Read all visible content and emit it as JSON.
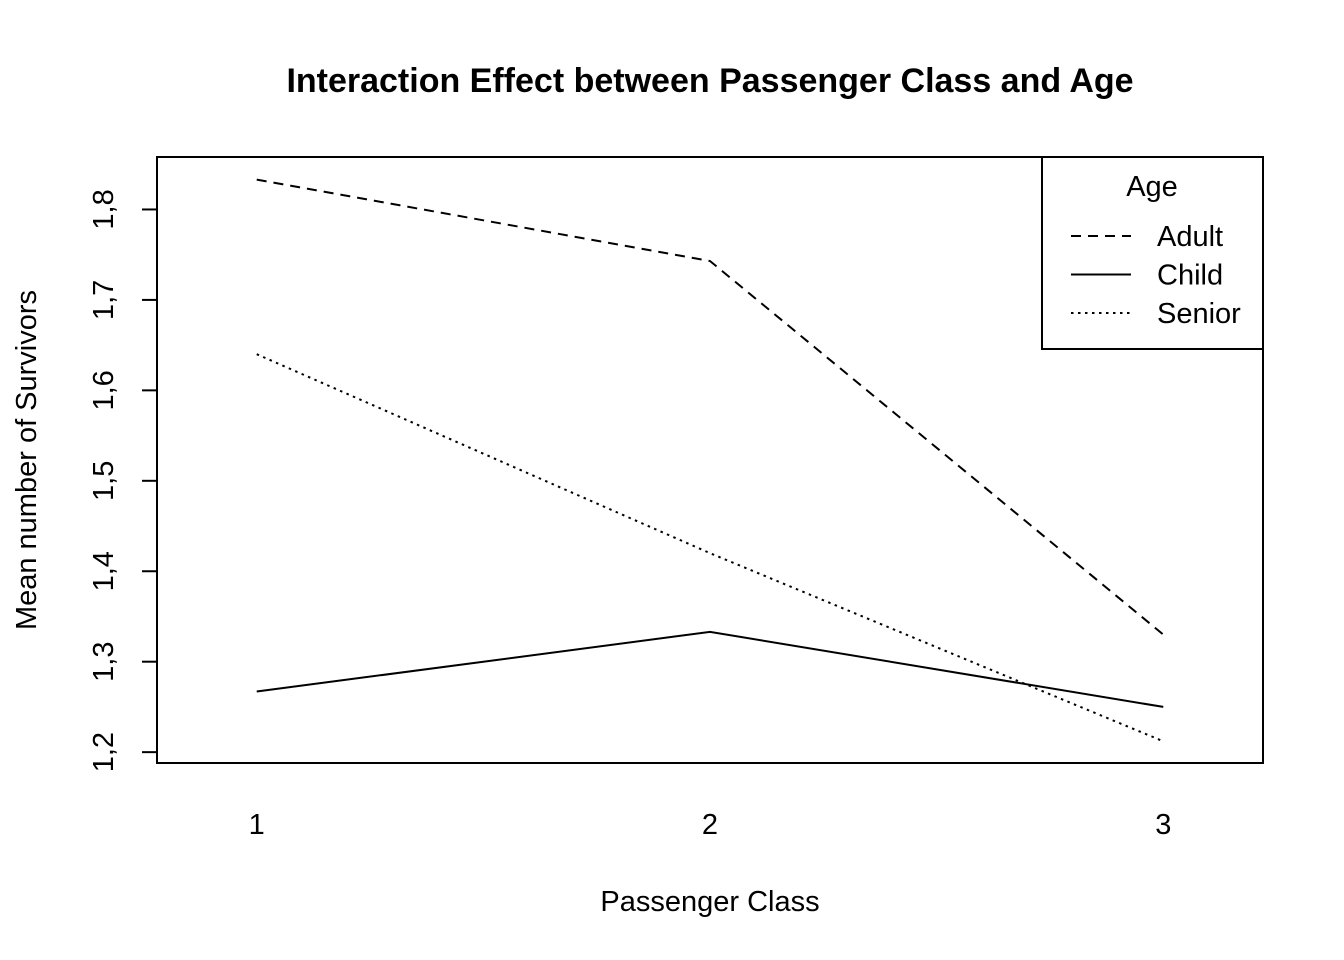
{
  "chart_data": {
    "type": "line",
    "title": "Interaction Effect between Passenger Class and Age",
    "xlabel": "Passenger Class",
    "ylabel": "Mean number of Survivors",
    "categories": [
      "1",
      "2",
      "3"
    ],
    "yticks": [
      1.2,
      1.3,
      1.4,
      1.5,
      1.6,
      1.7,
      1.8
    ],
    "ytick_labels": [
      "1,2",
      "1,3",
      "1,4",
      "1,5",
      "1,6",
      "1,7",
      "1,8"
    ],
    "ylim": [
      1.188,
      1.858
    ],
    "xlim": [
      0.78,
      3.22
    ],
    "grid": false,
    "legend": {
      "title": "Age",
      "placement": "top-right"
    },
    "series": [
      {
        "name": "Adult",
        "linestyle": "dashed",
        "color": "#000000",
        "values": [
          1.833,
          1.743,
          1.33
        ]
      },
      {
        "name": "Child",
        "linestyle": "solid",
        "color": "#000000",
        "values": [
          1.267,
          1.333,
          1.25
        ]
      },
      {
        "name": "Senior",
        "linestyle": "dotted",
        "color": "#000000",
        "values": [
          1.64,
          1.42,
          1.212
        ]
      }
    ]
  }
}
